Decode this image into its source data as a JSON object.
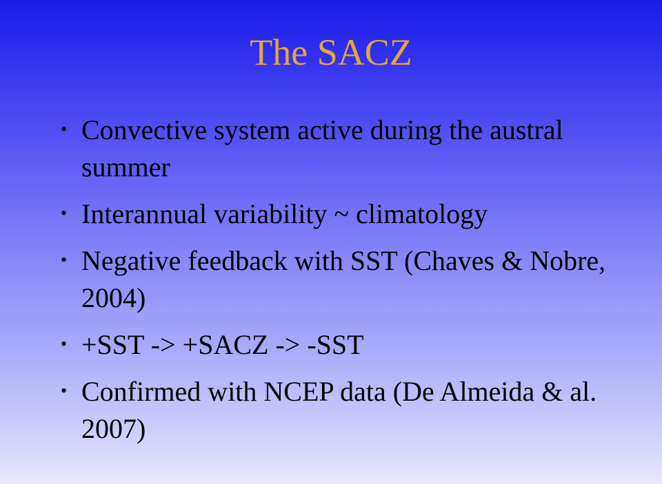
{
  "title": "The SACZ",
  "title_color": "#e8a53a",
  "title_fontsize": 54,
  "body_fontsize": 40,
  "body_color": "#000000",
  "background_gradient": {
    "stops": [
      "#1a1ae8",
      "#3838f0",
      "#6060f5",
      "#8a8af8",
      "#b0b0fa",
      "#d0d0fc",
      "#e8e8fd"
    ]
  },
  "bullets": [
    "Convective system active during the austral summer",
    "Interannual variability ~ climatology",
    "Negative feedback with SST (Chaves & Nobre, 2004)",
    "+SST -> +SACZ -> -SST",
    "Confirmed with NCEP data (De Almeida & al. 2007)"
  ]
}
